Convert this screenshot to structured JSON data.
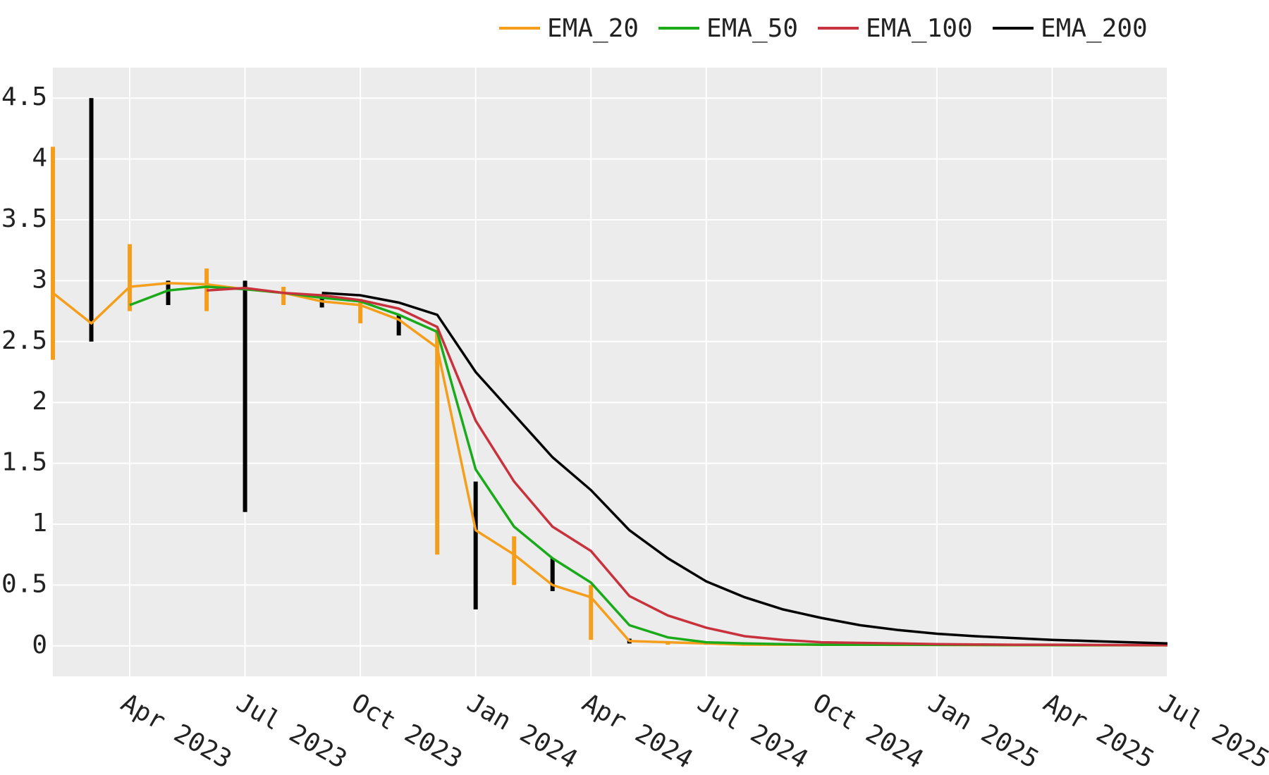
{
  "chart_data": {
    "type": "line",
    "x": [
      "2023-02",
      "2023-03",
      "2023-04",
      "2023-05",
      "2023-06",
      "2023-07",
      "2023-08",
      "2023-09",
      "2023-10",
      "2023-11",
      "2023-12",
      "2024-01",
      "2024-02",
      "2024-03",
      "2024-04",
      "2024-05",
      "2024-06",
      "2024-07",
      "2024-08",
      "2024-09",
      "2024-10",
      "2024-11",
      "2024-12",
      "2025-01",
      "2025-02",
      "2025-03",
      "2025-04",
      "2025-05",
      "2025-06",
      "2025-07"
    ],
    "price": {
      "up_color": "#f59e1b",
      "down_color": "#000000",
      "highs": [
        4.1,
        4.5,
        3.3,
        3.0,
        3.1,
        3.0,
        2.95,
        2.88,
        2.85,
        2.72,
        2.6,
        1.35,
        0.9,
        0.72,
        0.5,
        0.06,
        0.03,
        0.02,
        null,
        null,
        null,
        null,
        null,
        null,
        null,
        null,
        null,
        null,
        null,
        null
      ],
      "lows": [
        2.35,
        2.5,
        2.75,
        2.8,
        2.75,
        1.1,
        2.8,
        2.78,
        2.65,
        2.55,
        0.75,
        0.3,
        0.5,
        0.45,
        0.05,
        0.02,
        0.01,
        0.01,
        null,
        null,
        null,
        null,
        null,
        null,
        null,
        null,
        null,
        null,
        null,
        null
      ]
    },
    "series": [
      {
        "name": "EMA_20",
        "color": "#f59e1b",
        "values": [
          2.9,
          2.65,
          2.95,
          2.98,
          2.97,
          2.93,
          2.9,
          2.83,
          2.8,
          2.68,
          2.45,
          0.95,
          0.75,
          0.5,
          0.4,
          0.04,
          0.03,
          0.02,
          0.01,
          0.01,
          0.01,
          0.01,
          0.008,
          0.008,
          0.007,
          0.006,
          0.006,
          0.005,
          0.005,
          0.005
        ]
      },
      {
        "name": "EMA_50",
        "color": "#1aaa1a",
        "values": [
          null,
          null,
          2.8,
          2.92,
          2.95,
          2.93,
          2.9,
          2.86,
          2.83,
          2.72,
          2.58,
          1.45,
          0.98,
          0.72,
          0.52,
          0.17,
          0.07,
          0.03,
          0.02,
          0.015,
          0.01,
          0.01,
          0.01,
          0.008,
          0.008,
          0.007,
          0.007,
          0.006,
          0.006,
          0.005
        ]
      },
      {
        "name": "EMA_100",
        "color": "#c8323c",
        "values": [
          null,
          null,
          null,
          null,
          2.92,
          2.94,
          2.9,
          2.88,
          2.84,
          2.77,
          2.62,
          1.85,
          1.35,
          0.98,
          0.78,
          0.41,
          0.25,
          0.15,
          0.08,
          0.05,
          0.03,
          0.025,
          0.02,
          0.015,
          0.012,
          0.01,
          0.01,
          0.008,
          0.007,
          0.006
        ]
      },
      {
        "name": "EMA_200",
        "color": "#000000",
        "values": [
          null,
          null,
          null,
          null,
          null,
          null,
          null,
          2.9,
          2.88,
          2.82,
          2.72,
          2.25,
          1.9,
          1.55,
          1.28,
          0.95,
          0.72,
          0.53,
          0.4,
          0.3,
          0.23,
          0.17,
          0.13,
          0.1,
          0.08,
          0.065,
          0.05,
          0.04,
          0.03,
          0.02
        ]
      }
    ],
    "xlim": [
      "2023-02",
      "2025-07"
    ],
    "xticks": [
      {
        "value": "2023-04",
        "label": "Apr 2023"
      },
      {
        "value": "2023-07",
        "label": "Jul 2023"
      },
      {
        "value": "2023-10",
        "label": "Oct 2023"
      },
      {
        "value": "2024-01",
        "label": "Jan 2024"
      },
      {
        "value": "2024-04",
        "label": "Apr 2024"
      },
      {
        "value": "2024-07",
        "label": "Jul 2024"
      },
      {
        "value": "2024-10",
        "label": "Oct 2024"
      },
      {
        "value": "2025-01",
        "label": "Jan 2025"
      },
      {
        "value": "2025-04",
        "label": "Apr 2025"
      },
      {
        "value": "2025-07",
        "label": "Jul 2025"
      }
    ],
    "ylim": [
      -0.25,
      4.75
    ],
    "yticks": [
      0,
      0.5,
      1,
      1.5,
      2,
      2.5,
      3,
      3.5,
      4,
      4.5
    ],
    "grid": true,
    "legend": "top-right"
  }
}
